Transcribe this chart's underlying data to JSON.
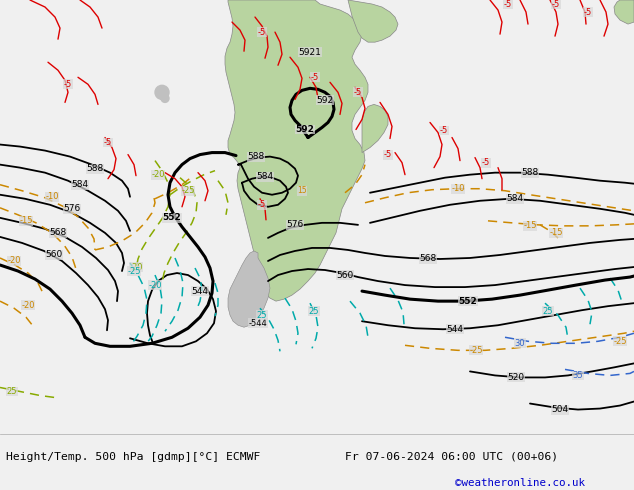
{
  "title_left": "Height/Temp. 500 hPa [gdmp][°C] ECMWF",
  "title_right": "Fr 07-06-2024 06:00 UTC (00+06)",
  "credit": "©weatheronline.co.uk",
  "fig_width": 6.34,
  "fig_height": 4.9,
  "dpi": 100,
  "bg_color": "#d8d8d8",
  "land_green": "#b8d4a0",
  "land_gray": "#c0c0c0",
  "border_color": "#888888",
  "bottom_bg": "#f0f0f0",
  "credit_color": "#0000cc",
  "black_lw": 1.3,
  "thick_lw": 2.2,
  "red_lw": 1.0,
  "orange_lw": 1.1,
  "yellow_green_lw": 1.1,
  "cyan_lw": 1.1,
  "blue_lw": 1.1
}
